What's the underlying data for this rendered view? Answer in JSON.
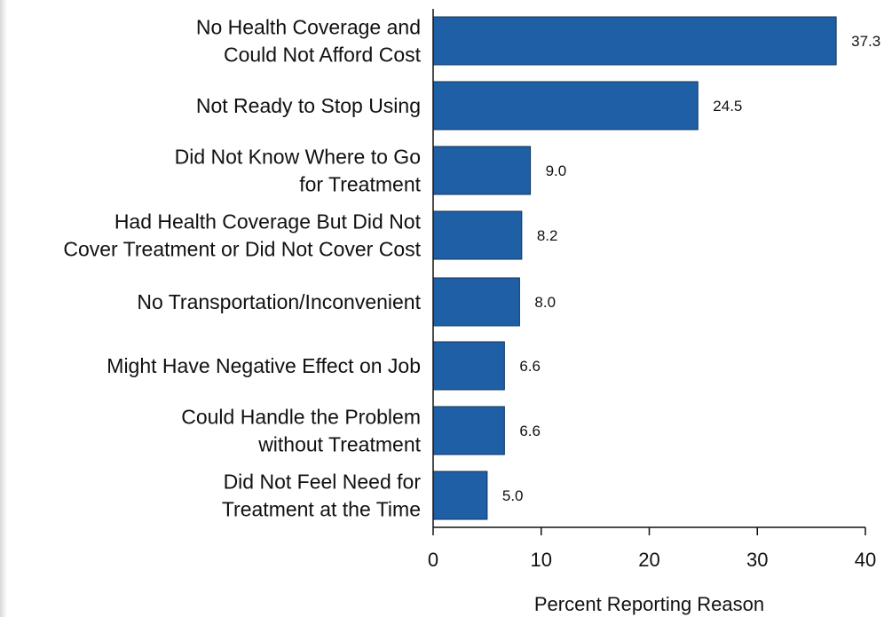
{
  "chart_data": {
    "type": "bar",
    "orientation": "horizontal",
    "title": "",
    "xlabel": "Percent Reporting Reason",
    "ylabel": "",
    "xlim": [
      0,
      40
    ],
    "xticks": [
      0,
      10,
      20,
      30,
      40
    ],
    "grid": false,
    "bar_color": "#1f5fa6",
    "categories": [
      [
        "No Health Coverage and",
        "Could Not Afford Cost"
      ],
      [
        "Not Ready to Stop Using"
      ],
      [
        "Did Not Know Where to Go",
        "for Treatment"
      ],
      [
        "Had Health Coverage But Did Not",
        "Cover Treatment or Did Not Cover Cost"
      ],
      [
        "No Transportation/Inconvenient"
      ],
      [
        "Might Have Negative Effect on Job"
      ],
      [
        "Could Handle the Problem",
        "without Treatment"
      ],
      [
        "Did Not Feel Need for",
        "Treatment at the Time"
      ]
    ],
    "values": [
      37.3,
      24.5,
      9.0,
      8.2,
      8.0,
      6.6,
      6.6,
      5.0
    ],
    "value_labels": [
      "37.3",
      "24.5",
      "9.0",
      "8.2",
      "8.0",
      "6.6",
      "6.6",
      "5.0"
    ]
  }
}
